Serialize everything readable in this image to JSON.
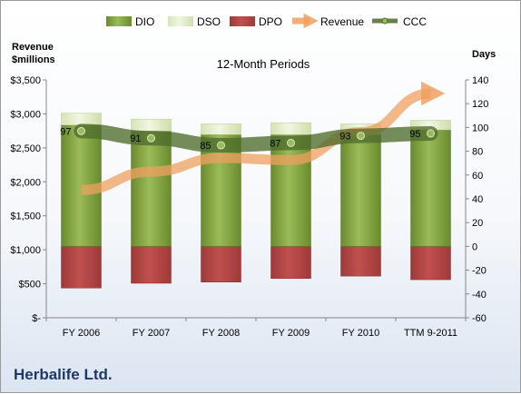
{
  "company": "Herbalife Ltd.",
  "chart_data": {
    "type": "bar",
    "title": "12-Month Periods",
    "categories": [
      "FY 2006",
      "FY 2007",
      "FY 2008",
      "FY 2009",
      "FY 2010",
      "TTM 9-2011"
    ],
    "y_left": {
      "label_line1": "Revenue",
      "label_line2": "$millions",
      "range": [
        0,
        3500
      ],
      "ticks": [
        0,
        500,
        1000,
        1500,
        2000,
        2500,
        3000,
        3500
      ],
      "tick_labels": [
        "$-",
        "$500",
        "$1,000",
        "$1,500",
        "$2,000",
        "$2,500",
        "$3,000",
        "$3,500"
      ]
    },
    "y_right": {
      "label": "Days",
      "range": [
        -60,
        140
      ],
      "ticks": [
        -60,
        -40,
        -20,
        0,
        20,
        40,
        60,
        80,
        100,
        120,
        140
      ],
      "tick_labels": [
        "-60",
        "-40",
        "-20",
        "0",
        "20",
        "40",
        "60",
        "80",
        "100",
        "120",
        "140"
      ]
    },
    "legend": {
      "position": "top",
      "entries": [
        "DIO",
        "DSO",
        "DPO",
        "Revenue",
        "CCC"
      ]
    },
    "series": [
      {
        "name": "DIO",
        "axis": "right",
        "kind": "stacked_bar",
        "color": "#7a9c3c",
        "values": [
          102,
          97,
          94,
          94,
          94,
          98
        ]
      },
      {
        "name": "DSO",
        "axis": "right",
        "kind": "stacked_bar",
        "color": "#e6efcd",
        "values": [
          10,
          10,
          9,
          10,
          9,
          8
        ]
      },
      {
        "name": "DPO",
        "axis": "right",
        "kind": "negative_bar",
        "color": "#b24a4a",
        "values": [
          -35,
          -31,
          -30,
          -27,
          -25,
          -28
        ]
      },
      {
        "name": "Revenue",
        "axis": "left",
        "kind": "line",
        "color": "#f0a060",
        "values": [
          1880,
          2150,
          2350,
          2320,
          2730,
          3300
        ]
      },
      {
        "name": "CCC",
        "axis": "right",
        "kind": "line",
        "color": "#4e6b2c",
        "values": [
          97,
          91,
          85,
          87,
          93,
          95
        ],
        "data_labels": [
          "97",
          "91",
          "85",
          "87",
          "93",
          "95"
        ]
      }
    ]
  }
}
